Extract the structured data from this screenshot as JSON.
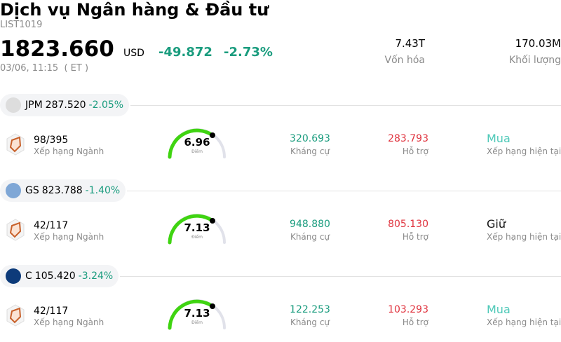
{
  "header": {
    "title": "Dịch vụ Ngân hàng & Đầu tư",
    "code": "LIST1019",
    "price": "1823.660",
    "currency": "USD",
    "change": "-49.872",
    "change_pct": "-2.73%",
    "time": "03/06, 11:15  ( ET )",
    "stats": [
      {
        "value": "7.43T",
        "label": "Vốn hóa"
      },
      {
        "value": "170.03M",
        "label": "Khối lượng"
      }
    ]
  },
  "stocks": [
    {
      "ticker": "JPM",
      "price": "287.520",
      "change": "-2.05%",
      "logo_color": "#dddddd",
      "rank": "98/395",
      "rank_label": "Xếp hạng Ngành",
      "score": "6.96",
      "score_label": "Điểm",
      "resistance": "320.693",
      "resistance_label": "Kháng cự",
      "support": "283.793",
      "support_label": "Hỗ trợ",
      "rating": "Mua",
      "rating_color": "#4ec9b8",
      "rating_label": "Xếp hạng hiện tại"
    },
    {
      "ticker": "GS",
      "price": "823.788",
      "change": "-1.40%",
      "logo_color": "#7fa7d6",
      "rank": "42/117",
      "rank_label": "Xếp hạng Ngành",
      "score": "7.13",
      "score_label": "Điểm",
      "resistance": "948.880",
      "resistance_label": "Kháng cự",
      "support": "805.130",
      "support_label": "Hỗ trợ",
      "rating": "Giữ",
      "rating_color": "#111111",
      "rating_label": "Xếp hạng hiện tại"
    },
    {
      "ticker": "C",
      "price": "105.420",
      "change": "-3.24%",
      "logo_color": "#0d3b7a",
      "rank": "42/117",
      "rank_label": "Xếp hạng Ngành",
      "score": "7.13",
      "score_label": "Điểm",
      "resistance": "122.253",
      "resistance_label": "Kháng cự",
      "support": "103.293",
      "support_label": "Hỗ trợ",
      "rating": "Mua",
      "rating_color": "#4ec9b8",
      "rating_label": "Xếp hạng hiện tại"
    }
  ]
}
